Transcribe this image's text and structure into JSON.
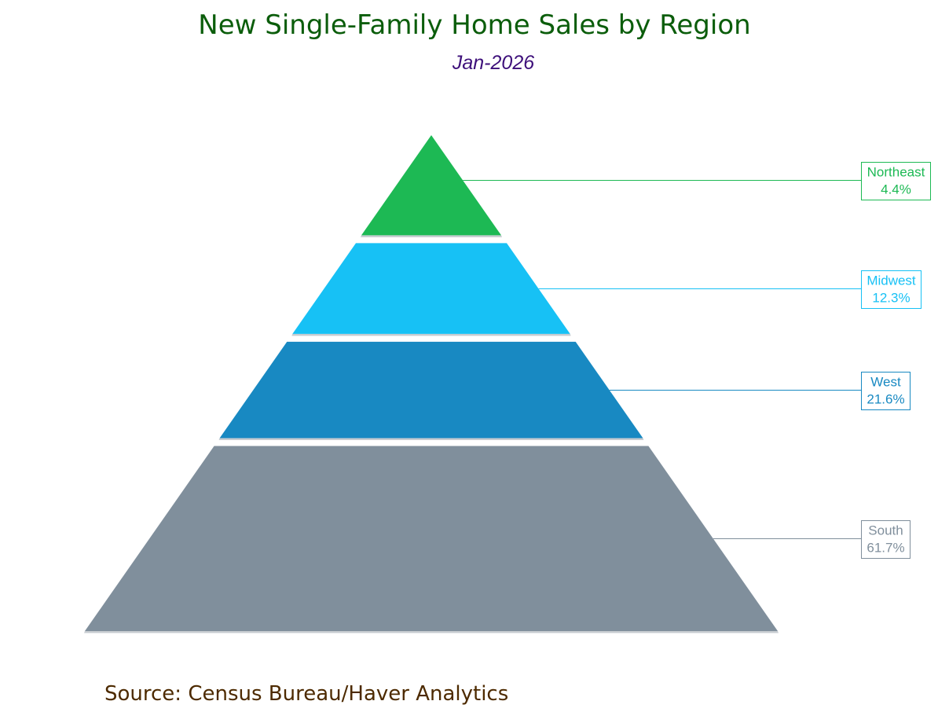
{
  "chart_data": {
    "type": "pyramid",
    "title": "New Single-Family Home Sales by Region",
    "subtitle": "Jan-2026",
    "source": "Source:  Census Bureau/Haver Analytics",
    "segments": [
      {
        "name": "Northeast",
        "value": 4.4,
        "value_label": "4.4%",
        "color": "#1db954"
      },
      {
        "name": "Midwest",
        "value": 12.3,
        "value_label": "12.3%",
        "color": "#17c1f5"
      },
      {
        "name": "West",
        "value": 21.6,
        "value_label": "21.6%",
        "color": "#1889c2"
      },
      {
        "name": "South",
        "value": 61.7,
        "value_label": "61.7%",
        "color": "#808f9c"
      }
    ]
  }
}
